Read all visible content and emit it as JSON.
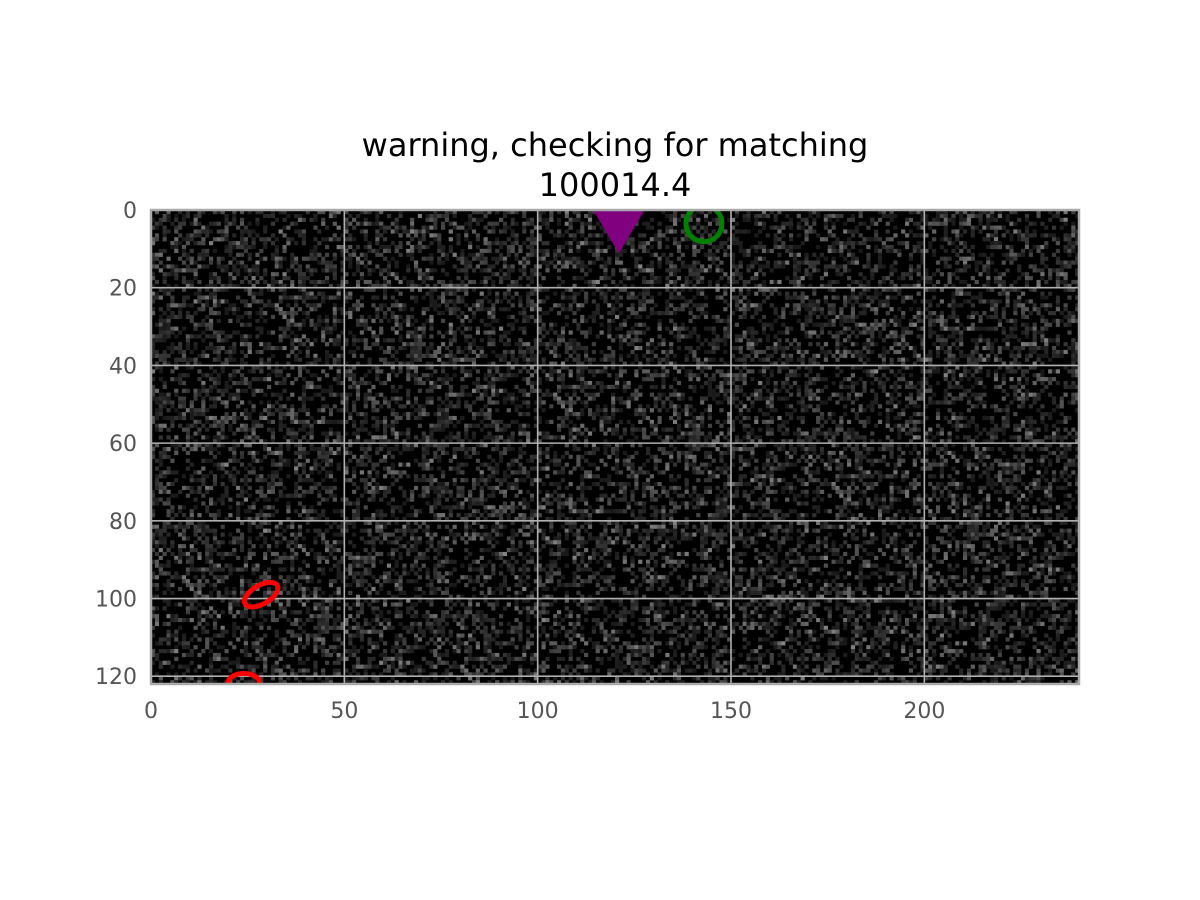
{
  "chart_data": {
    "type": "heatmap",
    "title": "warning, checking for matching",
    "subtitle": "100014.4",
    "xlabel": "",
    "ylabel": "",
    "xlim": [
      0,
      240
    ],
    "ylim": [
      122,
      0
    ],
    "x_ticks": [
      0,
      50,
      100,
      150,
      200
    ],
    "y_ticks": [
      0,
      20,
      40,
      60,
      80,
      100,
      120
    ],
    "grid": true,
    "image": {
      "description_type": "noise",
      "width": 240,
      "height": 122,
      "colormap": "gray",
      "background": "#000000"
    },
    "markers": [
      {
        "shape": "triangle-down",
        "x": 121,
        "y": 4,
        "color": "#800080",
        "filled": true
      },
      {
        "shape": "circle",
        "x": 143,
        "y": 3.5,
        "color": "#008000",
        "filled": false
      },
      {
        "shape": "ellipse",
        "x": 28.5,
        "y": 99,
        "rx": 4.8,
        "ry": 2.4,
        "angle": -30,
        "color": "#ff0000",
        "filled": false
      },
      {
        "shape": "ellipse",
        "x": 24,
        "y": 121.5,
        "rx": 4,
        "ry": 2.2,
        "angle": 0,
        "color": "#ff0000",
        "filled": false
      }
    ],
    "colors": {
      "axes_frame": "#aaaaaa",
      "grid": "#b0b0b0",
      "tick_label": "#555555"
    }
  }
}
